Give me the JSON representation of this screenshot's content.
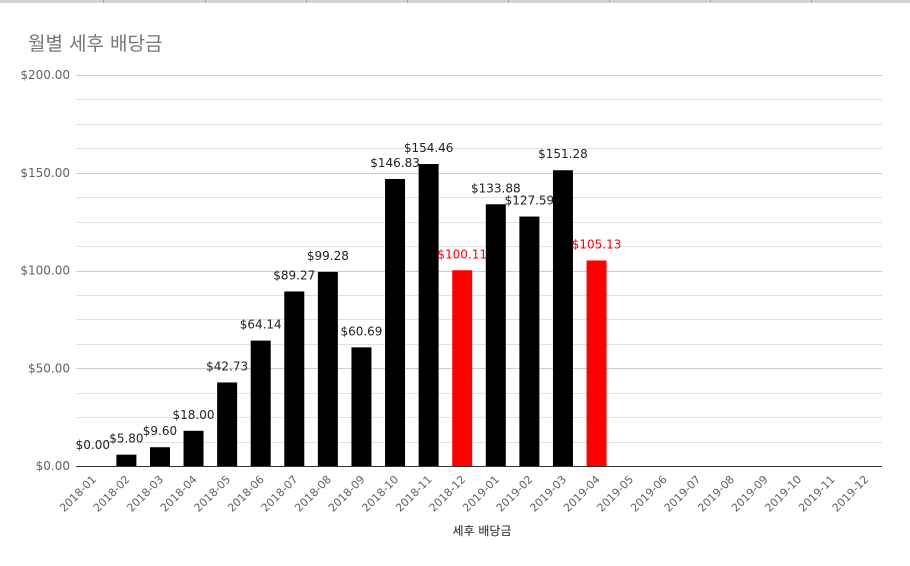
{
  "chart_data": {
    "type": "bar",
    "title": "월별 세후 배당금",
    "xlabel": "세후 배당금",
    "ylabel": "",
    "ylim": [
      0,
      200
    ],
    "y_ticks": [
      "$0.00",
      "$50.00",
      "$100.00",
      "$150.00",
      "$200.00"
    ],
    "grid": true,
    "categories": [
      "2018-01",
      "2018-02",
      "2018-03",
      "2018-04",
      "2018-05",
      "2018-06",
      "2018-07",
      "2018-08",
      "2018-09",
      "2018-10",
      "2018-11",
      "2018-12",
      "2019-01",
      "2019-02",
      "2019-03",
      "2019-04",
      "2019-05",
      "2019-06",
      "2019-07",
      "2019-08",
      "2019-09",
      "2019-10",
      "2019-11",
      "2019-12"
    ],
    "values": [
      0,
      5.8,
      9.6,
      18.0,
      42.73,
      64.14,
      89.27,
      99.28,
      60.69,
      146.83,
      154.46,
      100.11,
      133.88,
      127.59,
      151.28,
      105.13,
      null,
      null,
      null,
      null,
      null,
      null,
      null,
      null
    ],
    "value_labels": [
      "$0.00",
      "$5.80",
      "$9.60",
      "$18.00",
      "$42.73",
      "$64.14",
      "$89.27",
      "$99.28",
      "$60.69",
      "$146.83",
      "$154.46",
      "$100.11",
      "$133.88",
      "$127.59",
      "$151.28",
      "$105.13",
      "",
      "",
      "",
      "",
      "",
      "",
      "",
      ""
    ],
    "bar_colors": [
      "#000000",
      "#000000",
      "#000000",
      "#000000",
      "#000000",
      "#000000",
      "#000000",
      "#000000",
      "#000000",
      "#000000",
      "#000000",
      "#ff0000",
      "#000000",
      "#000000",
      "#000000",
      "#ff0000",
      "#000000",
      "#000000",
      "#000000",
      "#000000",
      "#000000",
      "#000000",
      "#000000",
      "#000000"
    ],
    "label_colors": [
      "#222222",
      "#222222",
      "#222222",
      "#222222",
      "#222222",
      "#222222",
      "#222222",
      "#222222",
      "#222222",
      "#222222",
      "#222222",
      "#ff0000",
      "#222222",
      "#222222",
      "#222222",
      "#ff0000",
      "#222222",
      "#222222",
      "#222222",
      "#222222",
      "#222222",
      "#222222",
      "#222222",
      "#222222"
    ],
    "gridline_color": "#e0e0e0",
    "major_gridline_color": "#cccccc"
  }
}
